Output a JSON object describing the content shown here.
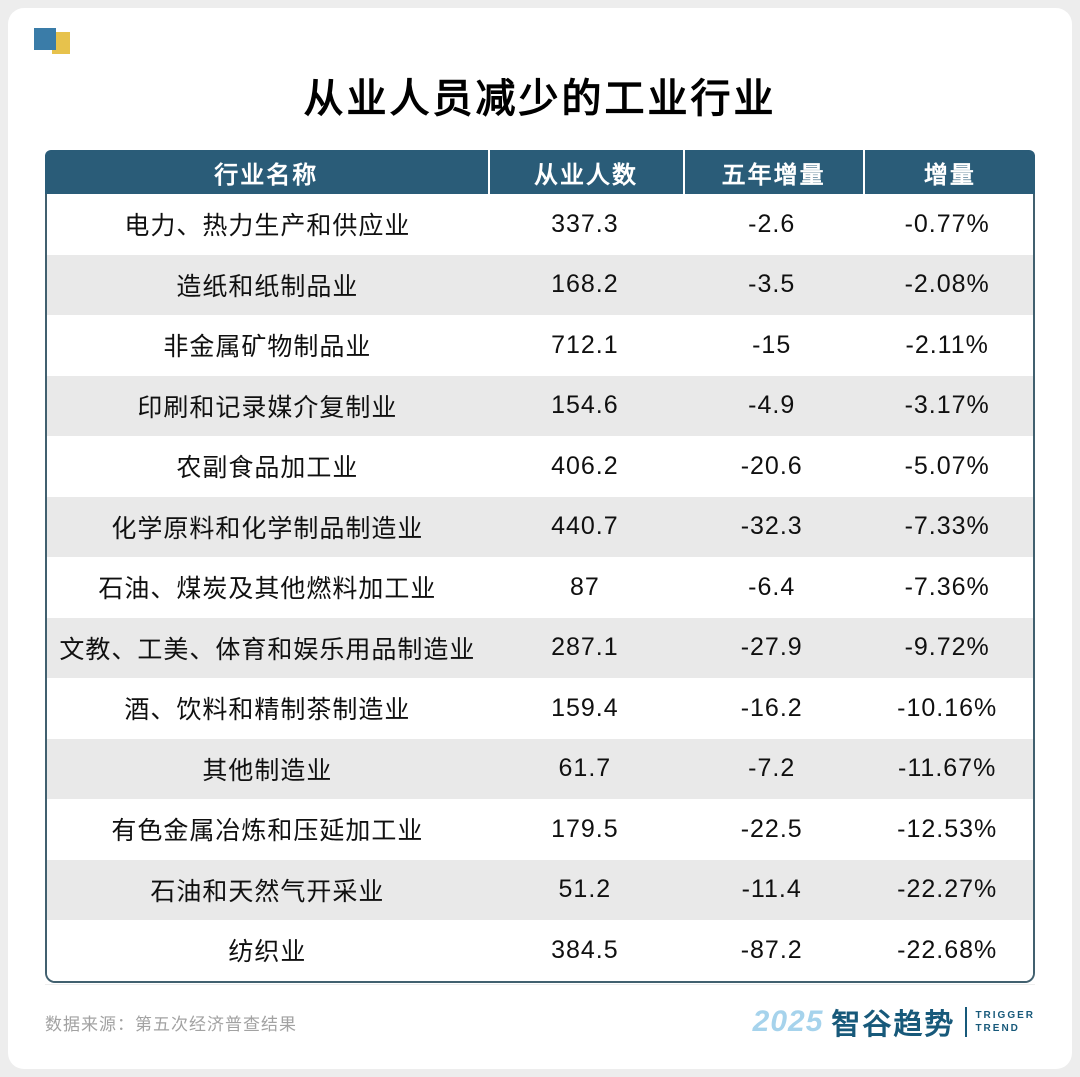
{
  "title": "从业人员减少的工业行业",
  "table": {
    "headers": [
      "行业名称",
      "从业人数",
      "五年增量",
      "增量"
    ]
  },
  "footer": {
    "source": "数据来源：第五次经济普查结果",
    "brand_year": "2025",
    "brand_name": "智谷趋势",
    "brand_sub_line1": "TRIGGER",
    "brand_sub_line2": "TREND"
  },
  "colors": {
    "header_bg": "#2a5c78",
    "row_alt": "#e9e9e9",
    "body_border": "#41606f",
    "accent_blue": "#3a7ca8",
    "accent_yellow": "#e7c24c",
    "brand_light": "#a6d3ec",
    "brand_dark": "#17597a"
  },
  "chart_data": {
    "type": "table",
    "title": "从业人员减少的工业行业",
    "columns": [
      "行业名称",
      "从业人数",
      "五年增量",
      "增量"
    ],
    "rows": [
      [
        "电力、热力生产和供应业",
        "337.3",
        "-2.6",
        "-0.77%"
      ],
      [
        "造纸和纸制品业",
        "168.2",
        "-3.5",
        "-2.08%"
      ],
      [
        "非金属矿物制品业",
        "712.1",
        "-15",
        "-2.11%"
      ],
      [
        "印刷和记录媒介复制业",
        "154.6",
        "-4.9",
        "-3.17%"
      ],
      [
        "农副食品加工业",
        "406.2",
        "-20.6",
        "-5.07%"
      ],
      [
        "化学原料和化学制品制造业",
        "440.7",
        "-32.3",
        "-7.33%"
      ],
      [
        "石油、煤炭及其他燃料加工业",
        "87",
        "-6.4",
        "-7.36%"
      ],
      [
        "文教、工美、体育和娱乐用品制造业",
        "287.1",
        "-27.9",
        "-9.72%"
      ],
      [
        "酒、饮料和精制茶制造业",
        "159.4",
        "-16.2",
        "-10.16%"
      ],
      [
        "其他制造业",
        "61.7",
        "-7.2",
        "-11.67%"
      ],
      [
        "有色金属冶炼和压延加工业",
        "179.5",
        "-22.5",
        "-12.53%"
      ],
      [
        "石油和天然气开采业",
        "51.2",
        "-11.4",
        "-22.27%"
      ],
      [
        "纺织业",
        "384.5",
        "-87.2",
        "-22.68%"
      ]
    ]
  }
}
